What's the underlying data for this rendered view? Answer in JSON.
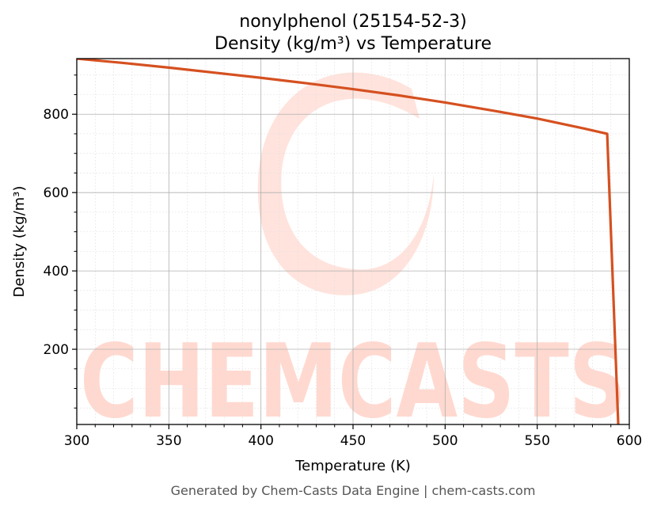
{
  "chart_data": {
    "type": "line",
    "title_line1": "nonylphenol (25154-52-3)",
    "title_line2": "Density (kg/m³) vs Temperature",
    "xlabel": "Temperature (K)",
    "ylabel": "Density (kg/m³)",
    "xlim": [
      300,
      600
    ],
    "ylim": [
      8,
      942
    ],
    "x_ticks": [
      300,
      350,
      400,
      450,
      500,
      550,
      600
    ],
    "y_ticks": [
      200,
      400,
      600,
      800
    ],
    "grid": true,
    "line_color": "#d55020",
    "series": [
      {
        "x": [
          300,
          325,
          350,
          375,
          400,
          425,
          450,
          475,
          500,
          525,
          550,
          575,
          588,
          594
        ],
        "y": [
          942,
          931,
          919,
          906,
          893,
          879,
          864,
          848,
          830,
          810,
          789,
          764,
          750,
          8
        ]
      }
    ],
    "watermark": "CHEMCASTS"
  },
  "footer": "Generated by Chem-Casts Data Engine | chem-casts.com"
}
